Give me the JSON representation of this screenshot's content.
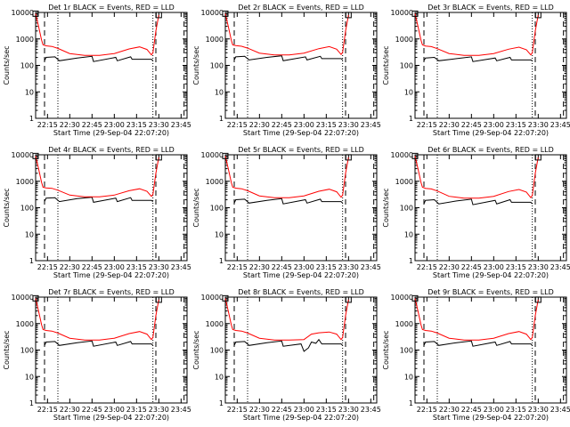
{
  "figure": {
    "xlabel": "Start Time (29-Sep-04 22:07:20)",
    "ylabel": "Counts/sec"
  },
  "chart_data": [
    {
      "type": "line",
      "title": "Det 1r  BLACK = Events, RED = LLD",
      "xlabel": "Start Time (29-Sep-04 22:07:20)",
      "ylabel": "Counts/sec",
      "yscale": "log",
      "ylim": [
        1,
        10000
      ],
      "xlim": [
        "22:07",
        "23:49"
      ],
      "x_ticks": [
        "22:15",
        "22:30",
        "22:45",
        "23:00",
        "23:15",
        "23:30",
        "23:45"
      ],
      "y_ticks": [
        "1",
        "10",
        "100",
        "1000",
        "10000"
      ],
      "dashed_markers": [
        "22:13",
        "23:28",
        "23:47"
      ],
      "dotted_markers": [
        "22:22",
        "23:26"
      ],
      "series": [
        {
          "name": "BLACK = Events",
          "color": "#000000",
          "x": [
            "22:13",
            "22:14",
            "22:20",
            "22:23",
            "22:35",
            "22:45",
            "22:46",
            "23:01",
            "23:02",
            "23:11",
            "23:12",
            "23:25",
            "23:26"
          ],
          "y": [
            150,
            200,
            210,
            150,
            190,
            220,
            140,
            200,
            150,
            210,
            170,
            170,
            150
          ]
        },
        {
          "name": "RED = LLD",
          "color": "#ff0000",
          "x": [
            "22:07",
            "22:09",
            "22:11",
            "22:12",
            "22:14",
            "22:18",
            "22:22",
            "22:30",
            "22:40",
            "22:50",
            "23:00",
            "23:10",
            "23:17",
            "23:22",
            "23:25",
            "23:26",
            "23:28",
            "23:30"
          ],
          "y": [
            9000,
            3000,
            900,
            600,
            550,
            520,
            440,
            280,
            240,
            240,
            280,
            420,
            500,
            400,
            250,
            300,
            2000,
            8000
          ]
        }
      ]
    },
    {
      "type": "line",
      "title": "Det 2r  BLACK = Events, RED = LLD",
      "xlabel": "Start Time (29-Sep-04 22:07:20)",
      "ylabel": "Counts/sec",
      "yscale": "log",
      "ylim": [
        1,
        10000
      ],
      "xlim": [
        "22:07",
        "23:49"
      ],
      "x_ticks": [
        "22:15",
        "22:30",
        "22:45",
        "23:00",
        "23:15",
        "23:30",
        "23:45"
      ],
      "y_ticks": [
        "1",
        "10",
        "100",
        "1000",
        "10000"
      ],
      "dashed_markers": [
        "22:13",
        "23:28",
        "23:47"
      ],
      "dotted_markers": [
        "22:22",
        "23:26"
      ],
      "series": [
        {
          "name": "BLACK = Events",
          "color": "#000000",
          "x": [
            "22:13",
            "22:14",
            "22:20",
            "22:23",
            "22:35",
            "22:45",
            "22:46",
            "23:01",
            "23:02",
            "23:11",
            "23:12",
            "23:25",
            "23:26"
          ],
          "y": [
            160,
            210,
            220,
            160,
            200,
            230,
            150,
            210,
            160,
            220,
            180,
            180,
            160
          ]
        },
        {
          "name": "RED = LLD",
          "color": "#ff0000",
          "x": [
            "22:07",
            "22:09",
            "22:11",
            "22:12",
            "22:14",
            "22:18",
            "22:22",
            "22:30",
            "22:40",
            "22:50",
            "23:00",
            "23:10",
            "23:17",
            "23:22",
            "23:25",
            "23:26",
            "23:28",
            "23:30"
          ],
          "y": [
            9000,
            3000,
            900,
            600,
            560,
            530,
            450,
            290,
            250,
            250,
            290,
            430,
            510,
            410,
            260,
            310,
            2000,
            8000
          ]
        }
      ]
    },
    {
      "type": "line",
      "title": "Det 3r  BLACK = Events, RED = LLD",
      "xlabel": "Start Time (29-Sep-04 22:07:20)",
      "ylabel": "Counts/sec",
      "yscale": "log",
      "ylim": [
        1,
        10000
      ],
      "xlim": [
        "22:07",
        "23:49"
      ],
      "x_ticks": [
        "22:15",
        "22:30",
        "22:45",
        "23:00",
        "23:15",
        "23:30",
        "23:45"
      ],
      "y_ticks": [
        "1",
        "10",
        "100",
        "1000",
        "10000"
      ],
      "dashed_markers": [
        "22:13",
        "23:28",
        "23:47"
      ],
      "dotted_markers": [
        "22:22",
        "23:26"
      ],
      "series": [
        {
          "name": "BLACK = Events",
          "color": "#000000",
          "x": [
            "22:13",
            "22:14",
            "22:20",
            "22:23",
            "22:35",
            "22:45",
            "22:46",
            "23:01",
            "23:02",
            "23:11",
            "23:12",
            "23:25",
            "23:26"
          ],
          "y": [
            150,
            190,
            200,
            150,
            180,
            210,
            140,
            190,
            150,
            200,
            160,
            160,
            150
          ]
        },
        {
          "name": "RED = LLD",
          "color": "#ff0000",
          "x": [
            "22:07",
            "22:09",
            "22:11",
            "22:12",
            "22:14",
            "22:18",
            "22:22",
            "22:30",
            "22:40",
            "22:50",
            "23:00",
            "23:10",
            "23:17",
            "23:22",
            "23:25",
            "23:26",
            "23:28",
            "23:30"
          ],
          "y": [
            9000,
            3000,
            900,
            600,
            540,
            510,
            430,
            280,
            240,
            240,
            280,
            410,
            490,
            390,
            250,
            300,
            2000,
            8000
          ]
        }
      ]
    },
    {
      "type": "line",
      "title": "Det 4r  BLACK = Events, RED = LLD",
      "xlabel": "Start Time (29-Sep-04 22:07:20)",
      "ylabel": "Counts/sec",
      "yscale": "log",
      "ylim": [
        1,
        10000
      ],
      "xlim": [
        "22:07",
        "23:49"
      ],
      "x_ticks": [
        "22:15",
        "22:30",
        "22:45",
        "23:00",
        "23:15",
        "23:30",
        "23:45"
      ],
      "y_ticks": [
        "1",
        "10",
        "100",
        "1000",
        "10000"
      ],
      "dashed_markers": [
        "22:13",
        "23:28",
        "23:47"
      ],
      "dotted_markers": [
        "22:22",
        "23:26"
      ],
      "series": [
        {
          "name": "BLACK = Events",
          "color": "#000000",
          "x": [
            "22:13",
            "22:14",
            "22:20",
            "22:23",
            "22:35",
            "22:45",
            "22:46",
            "23:01",
            "23:02",
            "23:11",
            "23:12",
            "23:25",
            "23:26"
          ],
          "y": [
            170,
            230,
            240,
            170,
            220,
            250,
            160,
            230,
            170,
            240,
            190,
            190,
            170
          ]
        },
        {
          "name": "RED = LLD",
          "color": "#ff0000",
          "x": [
            "22:07",
            "22:09",
            "22:11",
            "22:12",
            "22:14",
            "22:18",
            "22:22",
            "22:30",
            "22:40",
            "22:50",
            "23:00",
            "23:10",
            "23:17",
            "23:22",
            "23:25",
            "23:26",
            "23:28",
            "23:30"
          ],
          "y": [
            9000,
            3000,
            900,
            600,
            560,
            540,
            460,
            300,
            260,
            260,
            300,
            440,
            520,
            420,
            270,
            320,
            2000,
            8000
          ]
        }
      ]
    },
    {
      "type": "line",
      "title": "Det 5r  BLACK = Events, RED = LLD",
      "xlabel": "Start Time (29-Sep-04 22:07:20)",
      "ylabel": "Counts/sec",
      "yscale": "log",
      "ylim": [
        1,
        10000
      ],
      "xlim": [
        "22:07",
        "23:49"
      ],
      "x_ticks": [
        "22:15",
        "22:30",
        "22:45",
        "23:00",
        "23:15",
        "23:30",
        "23:45"
      ],
      "y_ticks": [
        "1",
        "10",
        "100",
        "1000",
        "10000"
      ],
      "dashed_markers": [
        "22:13",
        "23:28",
        "23:47"
      ],
      "dotted_markers": [
        "22:22",
        "23:26"
      ],
      "series": [
        {
          "name": "BLACK = Events",
          "color": "#000000",
          "x": [
            "22:13",
            "22:14",
            "22:20",
            "22:23",
            "22:35",
            "22:45",
            "22:46",
            "23:01",
            "23:02",
            "23:11",
            "23:12",
            "23:25",
            "23:26"
          ],
          "y": [
            150,
            200,
            210,
            150,
            190,
            220,
            140,
            200,
            150,
            210,
            170,
            170,
            150
          ]
        },
        {
          "name": "RED = LLD",
          "color": "#ff0000",
          "x": [
            "22:07",
            "22:09",
            "22:11",
            "22:12",
            "22:14",
            "22:18",
            "22:22",
            "22:30",
            "22:40",
            "22:50",
            "23:00",
            "23:10",
            "23:17",
            "23:22",
            "23:25",
            "23:26",
            "23:28",
            "23:30"
          ],
          "y": [
            9000,
            3000,
            900,
            600,
            550,
            520,
            440,
            280,
            240,
            240,
            280,
            420,
            500,
            400,
            250,
            300,
            2000,
            8000
          ]
        }
      ]
    },
    {
      "type": "line",
      "title": "Det 6r  BLACK = Events, RED = LLD",
      "xlabel": "Start Time (29-Sep-04 22:07:20)",
      "ylabel": "Counts/sec",
      "yscale": "log",
      "ylim": [
        1,
        10000
      ],
      "xlim": [
        "22:07",
        "23:49"
      ],
      "x_ticks": [
        "22:15",
        "22:30",
        "22:45",
        "23:00",
        "23:15",
        "23:30",
        "23:45"
      ],
      "y_ticks": [
        "1",
        "10",
        "100",
        "1000",
        "10000"
      ],
      "dashed_markers": [
        "22:13",
        "23:28",
        "23:47"
      ],
      "dotted_markers": [
        "22:22",
        "23:26"
      ],
      "series": [
        {
          "name": "BLACK = Events",
          "color": "#000000",
          "x": [
            "22:13",
            "22:14",
            "22:20",
            "22:23",
            "22:35",
            "22:45",
            "22:46",
            "23:01",
            "23:02",
            "23:11",
            "23:12",
            "23:25",
            "23:26"
          ],
          "y": [
            140,
            190,
            200,
            140,
            180,
            210,
            130,
            190,
            140,
            200,
            160,
            160,
            140
          ]
        },
        {
          "name": "RED = LLD",
          "color": "#ff0000",
          "x": [
            "22:07",
            "22:09",
            "22:11",
            "22:12",
            "22:14",
            "22:18",
            "22:22",
            "22:30",
            "22:40",
            "22:50",
            "23:00",
            "23:10",
            "23:17",
            "23:22",
            "23:25",
            "23:26",
            "23:28",
            "23:30"
          ],
          "y": [
            9000,
            3000,
            900,
            600,
            540,
            510,
            430,
            270,
            230,
            230,
            270,
            410,
            490,
            390,
            240,
            290,
            2000,
            8000
          ]
        }
      ]
    },
    {
      "type": "line",
      "title": "Det 7r  BLACK = Events, RED = LLD",
      "xlabel": "Start Time (29-Sep-04 22:07:20)",
      "ylabel": "Counts/sec",
      "yscale": "log",
      "ylim": [
        1,
        10000
      ],
      "xlim": [
        "22:07",
        "23:49"
      ],
      "x_ticks": [
        "22:15",
        "22:30",
        "22:45",
        "23:00",
        "23:15",
        "23:30",
        "23:45"
      ],
      "y_ticks": [
        "1",
        "10",
        "100",
        "1000",
        "10000"
      ],
      "dashed_markers": [
        "22:13",
        "23:28",
        "23:47"
      ],
      "dotted_markers": [
        "22:22",
        "23:26"
      ],
      "series": [
        {
          "name": "BLACK = Events",
          "color": "#000000",
          "x": [
            "22:13",
            "22:14",
            "22:20",
            "22:23",
            "22:35",
            "22:45",
            "22:46",
            "23:01",
            "23:02",
            "23:11",
            "23:12",
            "23:25",
            "23:26"
          ],
          "y": [
            150,
            200,
            210,
            150,
            190,
            220,
            140,
            200,
            150,
            210,
            170,
            170,
            150
          ]
        },
        {
          "name": "RED = LLD",
          "color": "#ff0000",
          "x": [
            "22:07",
            "22:09",
            "22:11",
            "22:12",
            "22:14",
            "22:18",
            "22:22",
            "22:30",
            "22:40",
            "22:50",
            "23:00",
            "23:10",
            "23:17",
            "23:22",
            "23:25",
            "23:26",
            "23:28",
            "23:30"
          ],
          "y": [
            9000,
            3000,
            900,
            600,
            550,
            520,
            440,
            280,
            240,
            240,
            280,
            420,
            500,
            400,
            250,
            300,
            2000,
            8000
          ]
        }
      ]
    },
    {
      "type": "line",
      "title": "Det 8r  BLACK = Events, RED = LLD",
      "xlabel": "Start Time (29-Sep-04 22:07:20)",
      "ylabel": "Counts/sec",
      "yscale": "log",
      "ylim": [
        1,
        10000
      ],
      "xlim": [
        "22:07",
        "23:49"
      ],
      "x_ticks": [
        "22:15",
        "22:30",
        "22:45",
        "23:00",
        "23:15",
        "23:30",
        "23:45"
      ],
      "y_ticks": [
        "1",
        "10",
        "100",
        "1000",
        "10000"
      ],
      "dashed_markers": [
        "22:13",
        "23:28",
        "23:47"
      ],
      "dotted_markers": [
        "22:22",
        "23:26"
      ],
      "series": [
        {
          "name": "BLACK = Events",
          "color": "#000000",
          "x": [
            "22:13",
            "22:14",
            "22:20",
            "22:23",
            "22:35",
            "22:45",
            "22:46",
            "22:58",
            "23:00",
            "23:03",
            "23:05",
            "23:08",
            "23:10",
            "23:12",
            "23:25",
            "23:26"
          ],
          "y": [
            150,
            200,
            210,
            150,
            190,
            220,
            140,
            170,
            90,
            120,
            200,
            180,
            250,
            170,
            170,
            150
          ]
        },
        {
          "name": "RED = LLD",
          "color": "#ff0000",
          "x": [
            "22:07",
            "22:09",
            "22:11",
            "22:12",
            "22:14",
            "22:18",
            "22:22",
            "22:30",
            "22:40",
            "22:50",
            "23:00",
            "23:05",
            "23:10",
            "23:17",
            "23:22",
            "23:25",
            "23:26",
            "23:28",
            "23:30"
          ],
          "y": [
            9000,
            3000,
            900,
            600,
            550,
            520,
            440,
            280,
            240,
            240,
            250,
            400,
            450,
            480,
            400,
            250,
            300,
            2000,
            8000
          ]
        }
      ]
    },
    {
      "type": "line",
      "title": "Det 9r  BLACK = Events, RED = LLD",
      "xlabel": "Start Time (29-Sep-04 22:07:20)",
      "ylabel": "Counts/sec",
      "yscale": "log",
      "ylim": [
        1,
        10000
      ],
      "xlim": [
        "22:07",
        "23:49"
      ],
      "x_ticks": [
        "22:15",
        "22:30",
        "22:45",
        "23:00",
        "23:15",
        "23:30",
        "23:45"
      ],
      "y_ticks": [
        "1",
        "10",
        "100",
        "1000",
        "10000"
      ],
      "dashed_markers": [
        "22:13",
        "23:28",
        "23:47"
      ],
      "dotted_markers": [
        "22:22",
        "23:26"
      ],
      "series": [
        {
          "name": "BLACK = Events",
          "color": "#000000",
          "x": [
            "22:13",
            "22:14",
            "22:20",
            "22:23",
            "22:35",
            "22:45",
            "22:46",
            "23:01",
            "23:02",
            "23:11",
            "23:12",
            "23:25",
            "23:26"
          ],
          "y": [
            150,
            200,
            210,
            150,
            190,
            220,
            140,
            200,
            150,
            210,
            170,
            170,
            150
          ]
        },
        {
          "name": "RED = LLD",
          "color": "#ff0000",
          "x": [
            "22:07",
            "22:09",
            "22:11",
            "22:12",
            "22:14",
            "22:18",
            "22:22",
            "22:30",
            "22:40",
            "22:50",
            "23:00",
            "23:10",
            "23:17",
            "23:22",
            "23:25",
            "23:26",
            "23:28",
            "23:30"
          ],
          "y": [
            9000,
            3000,
            900,
            600,
            550,
            520,
            440,
            280,
            240,
            240,
            280,
            420,
            500,
            400,
            250,
            300,
            2000,
            8000
          ]
        }
      ]
    }
  ]
}
